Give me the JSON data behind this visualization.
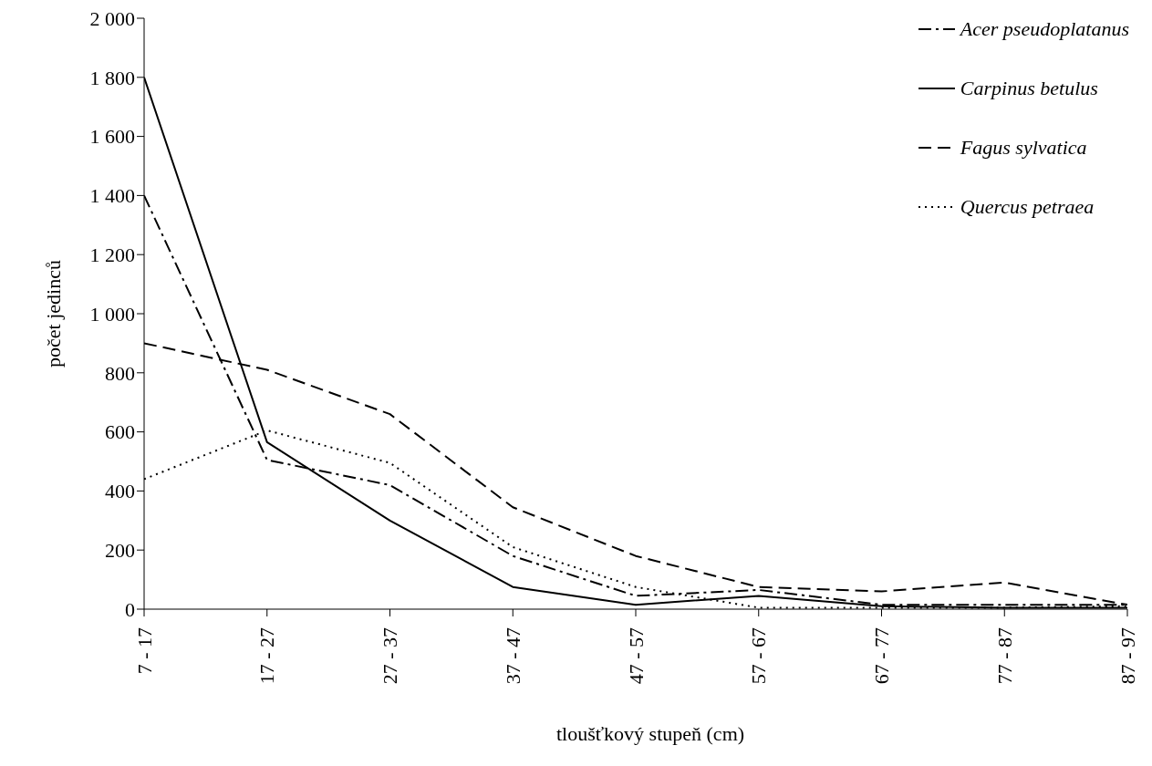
{
  "chart_data": {
    "type": "line",
    "xlabel": "tloušťkový stupeň (cm)",
    "ylabel": "počet jedinců",
    "categories": [
      "7 - 17",
      "17 - 27",
      "27 - 37",
      "37 - 47",
      "47 - 57",
      "57 - 67",
      "67 - 77",
      "77 - 87",
      "87 - 97"
    ],
    "series": [
      {
        "name": "Acer pseudoplatanus",
        "color": "#000000",
        "line_style": "dashdot",
        "values": [
          1400,
          505,
          420,
          180,
          45,
          65,
          15,
          15,
          15
        ]
      },
      {
        "name": "Carpinus betulus",
        "color": "#000000",
        "line_style": "solid",
        "values": [
          1800,
          565,
          300,
          75,
          15,
          45,
          10,
          5,
          5
        ]
      },
      {
        "name": "Fagus sylvatica",
        "color": "#000000",
        "line_style": "dashed",
        "values": [
          900,
          810,
          660,
          345,
          180,
          75,
          60,
          90,
          15
        ]
      },
      {
        "name": "Quercus petraea",
        "color": "#000000",
        "line_style": "dotted",
        "values": [
          440,
          605,
          495,
          210,
          75,
          5,
          5,
          5,
          10
        ]
      }
    ],
    "ylim": [
      0,
      2000
    ],
    "yticks": [
      0,
      200,
      400,
      600,
      800,
      {
        "value": 1000,
        "label": "1 000"
      },
      {
        "value": 1200,
        "label": "1 200"
      },
      {
        "value": 1400,
        "label": "1 400"
      },
      {
        "value": 1600,
        "label": "1 600"
      },
      {
        "value": 1800,
        "label": "1 800"
      },
      {
        "value": 2000,
        "label": "2 000"
      }
    ],
    "grid": false,
    "legend": "top right",
    "marker": "none"
  }
}
